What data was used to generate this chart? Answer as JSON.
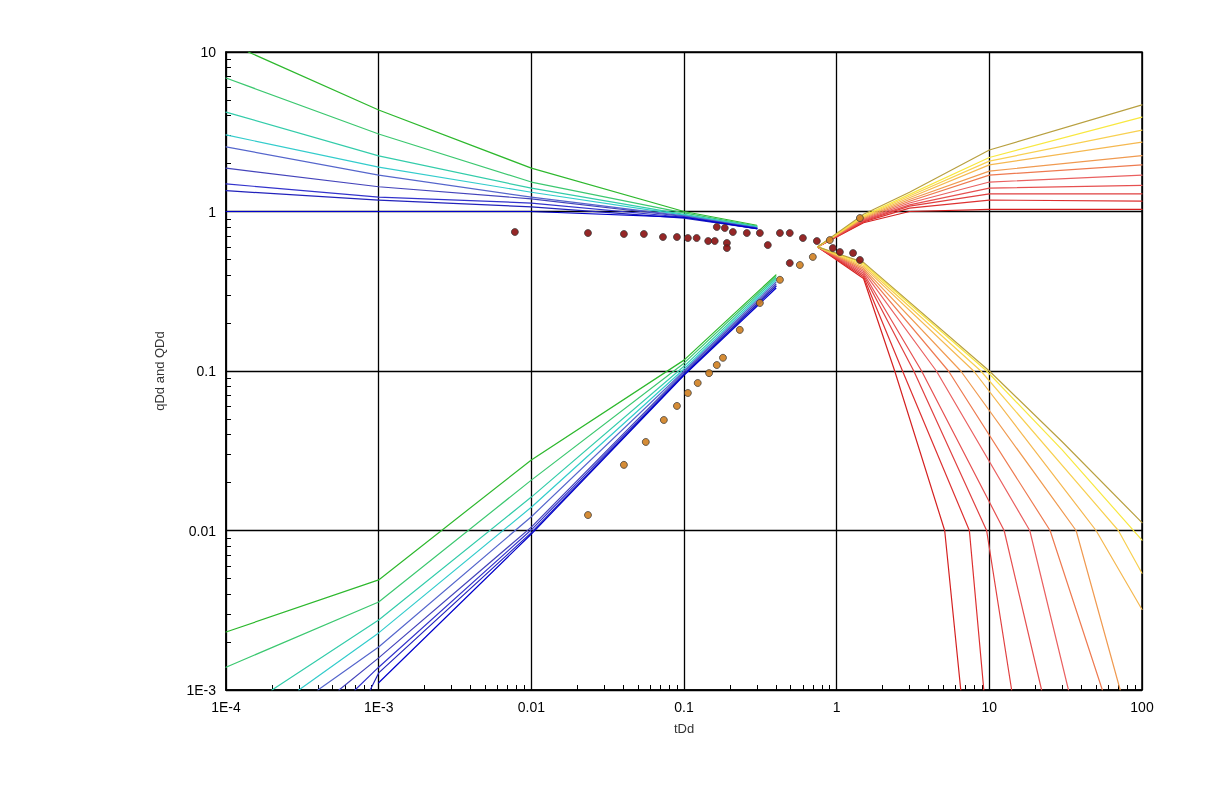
{
  "chart_data": {
    "type": "line",
    "xlabel": "tDd",
    "ylabel": "qDd and QDd",
    "log": "xy",
    "grid": true,
    "marker": "none",
    "xlim": [
      0.0001,
      100
    ],
    "xticks": [
      {
        "value": 0.0001,
        "label": "1E-4"
      },
      {
        "value": 0.001,
        "label": "1E-3"
      },
      0.01,
      0.1,
      1,
      10,
      100
    ],
    "ylim": [
      0.001,
      10
    ],
    "yticks": [
      {
        "value": 0.001,
        "label": "1E-3"
      },
      0.01,
      0.1,
      1,
      10
    ],
    "series": [
      {
        "color": "#2db82d",
        "x": [
          0.00014,
          0.001,
          0.01,
          0.1,
          0.3
        ],
        "values": [
          10,
          4.33,
          1.87,
          1.0,
          0.82
        ]
      },
      {
        "color": "#3cc870",
        "x": [
          0.0001,
          0.001,
          0.01,
          0.1,
          0.3
        ],
        "values": [
          6.87,
          3.06,
          1.53,
          0.98,
          0.81
        ]
      },
      {
        "color": "#33ccaa",
        "x": [
          0.0001,
          0.001,
          0.01,
          0.1,
          0.3
        ],
        "values": [
          4.2,
          2.23,
          1.4,
          0.96,
          0.8
        ]
      },
      {
        "color": "#33cccc",
        "x": [
          0.0001,
          0.001,
          0.01,
          0.1,
          0.3
        ],
        "values": [
          3.02,
          1.9,
          1.32,
          0.95,
          0.8
        ]
      },
      {
        "color": "#5566cc",
        "x": [
          0.0001,
          0.001,
          0.01,
          0.1,
          0.3
        ],
        "values": [
          2.54,
          1.69,
          1.23,
          0.94,
          0.79
        ]
      },
      {
        "color": "#4444bb",
        "x": [
          0.0001,
          0.001,
          0.01,
          0.1,
          0.3
        ],
        "values": [
          1.87,
          1.43,
          1.2,
          0.93,
          0.79
        ]
      },
      {
        "color": "#3333cc",
        "x": [
          0.0001,
          0.001,
          0.01,
          0.1,
          0.3
        ],
        "values": [
          1.49,
          1.23,
          1.13,
          0.92,
          0.78
        ]
      },
      {
        "color": "#2222bb",
        "x": [
          0.0001,
          0.001,
          0.01,
          0.1,
          0.3
        ],
        "values": [
          1.35,
          1.18,
          1.07,
          0.91,
          0.78
        ]
      },
      {
        "color": "#0000cc",
        "x": [
          0.0001,
          0.001,
          0.01,
          0.1,
          0.3
        ],
        "values": [
          1.0,
          1.0,
          1.0,
          0.92,
          0.78
        ]
      },
      {
        "color": "#2db82d",
        "x": [
          0.0001,
          0.001,
          0.01,
          0.1,
          0.4
        ],
        "values": [
          0.00231,
          0.0049,
          0.0277,
          0.117,
          0.4
        ]
      },
      {
        "color": "#3cc870",
        "x": [
          0.0001,
          0.001,
          0.01,
          0.1,
          0.4
        ],
        "values": [
          0.00139,
          0.00356,
          0.0207,
          0.112,
          0.39
        ]
      },
      {
        "color": "#33ccaa",
        "x": [
          0.0002,
          0.001,
          0.01,
          0.1,
          0.4
        ],
        "values": [
          0.001,
          0.00275,
          0.0162,
          0.107,
          0.38
        ]
      },
      {
        "color": "#33cccc",
        "x": [
          0.0003,
          0.001,
          0.01,
          0.1,
          0.4
        ],
        "values": [
          0.001,
          0.00228,
          0.014,
          0.103,
          0.37
        ]
      },
      {
        "color": "#5566cc",
        "x": [
          0.0004,
          0.001,
          0.01,
          0.1,
          0.4
        ],
        "values": [
          0.001,
          0.00186,
          0.0122,
          0.1,
          0.36
        ]
      },
      {
        "color": "#4444bb",
        "x": [
          0.00055,
          0.001,
          0.01,
          0.1,
          0.4
        ],
        "values": [
          0.001,
          0.00159,
          0.0105,
          0.098,
          0.35
        ]
      },
      {
        "color": "#3333cc",
        "x": [
          0.0007,
          0.001,
          0.01,
          0.1,
          0.4
        ],
        "values": [
          0.001,
          0.00139,
          0.0101,
          0.096,
          0.34
        ]
      },
      {
        "color": "#2222bb",
        "x": [
          0.00088,
          0.001,
          0.01,
          0.1,
          0.4
        ],
        "values": [
          0.001,
          0.00128,
          0.0097,
          0.095,
          0.34
        ]
      },
      {
        "color": "#0000cc",
        "x": [
          0.001,
          0.01,
          0.1,
          0.4
        ],
        "values": [
          0.00111,
          0.0095,
          0.094,
          0.33
        ]
      },
      {
        "color": "#d42020",
        "x": [
          0.75,
          1.5,
          2.4,
          5.1,
          6.5
        ],
        "values": [
          0.6,
          0.38,
          0.1,
          0.01,
          0.001
        ]
      },
      {
        "color": "#dd3030",
        "x": [
          0.75,
          1.5,
          2.7,
          7.4,
          9.2
        ],
        "values": [
          0.6,
          0.39,
          0.1,
          0.01,
          0.001
        ]
      },
      {
        "color": "#e04040",
        "x": [
          0.75,
          1.5,
          3.2,
          9.6,
          14
        ],
        "values": [
          0.6,
          0.4,
          0.1,
          0.01,
          0.001
        ]
      },
      {
        "color": "#e65050",
        "x": [
          0.75,
          1.5,
          3.6,
          12.5,
          22
        ],
        "values": [
          0.6,
          0.41,
          0.1,
          0.01,
          0.001
        ]
      },
      {
        "color": "#ea6060",
        "x": [
          0.75,
          1.5,
          4.5,
          18.4,
          33
        ],
        "values": [
          0.6,
          0.42,
          0.1,
          0.01,
          0.001
        ]
      },
      {
        "color": "#ee7a50",
        "x": [
          0.75,
          1.5,
          5.4,
          25,
          55
        ],
        "values": [
          0.6,
          0.43,
          0.1,
          0.01,
          0.001
        ]
      },
      {
        "color": "#f09a50",
        "x": [
          0.75,
          1.5,
          6.5,
          37,
          72
        ],
        "values": [
          0.6,
          0.44,
          0.1,
          0.01,
          0.001
        ]
      },
      {
        "color": "#f5b850",
        "x": [
          0.75,
          1.5,
          7.9,
          50,
          100
        ],
        "values": [
          0.6,
          0.45,
          0.1,
          0.01,
          0.0032
        ]
      },
      {
        "color": "#f8d050",
        "x": [
          0.75,
          1.5,
          8.8,
          70,
          100
        ],
        "values": [
          0.6,
          0.46,
          0.1,
          0.01,
          0.0054
        ]
      },
      {
        "color": "#f8e840",
        "x": [
          0.75,
          1.5,
          9.6,
          30,
          100
        ],
        "values": [
          0.6,
          0.47,
          0.1,
          0.032,
          0.0087
        ]
      },
      {
        "color": "#b8a040",
        "x": [
          0.75,
          1.5,
          10,
          30,
          100
        ],
        "values": [
          0.6,
          0.48,
          0.1,
          0.036,
          0.0112
        ]
      },
      {
        "color": "#d42020",
        "x": [
          0.75,
          1.5,
          3,
          10,
          100
        ],
        "values": [
          0.6,
          0.85,
          1.0,
          1.03,
          1.03
        ]
      },
      {
        "color": "#dd3030",
        "x": [
          0.75,
          1.5,
          3,
          10,
          100
        ],
        "values": [
          0.6,
          0.86,
          1.05,
          1.18,
          1.16
        ]
      },
      {
        "color": "#e04040",
        "x": [
          0.75,
          1.5,
          3,
          10,
          100
        ],
        "values": [
          0.6,
          0.87,
          1.08,
          1.29,
          1.29
        ]
      },
      {
        "color": "#e65050",
        "x": [
          0.75,
          1.5,
          3,
          10,
          100
        ],
        "values": [
          0.6,
          0.88,
          1.1,
          1.4,
          1.46
        ]
      },
      {
        "color": "#ea6060",
        "x": [
          0.75,
          1.5,
          3,
          10,
          100
        ],
        "values": [
          0.6,
          0.89,
          1.13,
          1.53,
          1.69
        ]
      },
      {
        "color": "#ee7a50",
        "x": [
          0.75,
          1.5,
          3,
          10,
          100
        ],
        "values": [
          0.6,
          0.9,
          1.16,
          1.69,
          1.96
        ]
      },
      {
        "color": "#f09a50",
        "x": [
          0.75,
          1.5,
          3,
          10,
          100
        ],
        "values": [
          0.6,
          0.91,
          1.19,
          1.79,
          2.24
        ]
      },
      {
        "color": "#f5b850",
        "x": [
          0.75,
          1.5,
          3,
          10,
          100
        ],
        "values": [
          0.6,
          0.92,
          1.22,
          1.96,
          2.72
        ]
      },
      {
        "color": "#f8d050",
        "x": [
          0.75,
          1.5,
          3,
          10,
          100
        ],
        "values": [
          0.6,
          0.93,
          1.25,
          2.07,
          3.24
        ]
      },
      {
        "color": "#f8e840",
        "x": [
          0.75,
          1.5,
          3,
          10,
          100
        ],
        "values": [
          0.6,
          0.94,
          1.28,
          2.18,
          3.91
        ]
      },
      {
        "color": "#b8a040",
        "x": [
          0.75,
          1.5,
          3,
          10,
          100
        ],
        "values": [
          0.6,
          0.96,
          1.32,
          2.43,
          4.66
        ]
      },
      {
        "type": "scatter",
        "marker": "circle",
        "color": "#8b1010",
        "x": [
          0.0078,
          0.0235,
          0.0404,
          0.0546,
          0.0728,
          0.0899,
          0.106,
          0.121,
          0.144,
          0.159,
          0.191,
          0.191,
          0.164,
          0.185,
          0.209,
          0.258,
          0.314,
          0.354,
          0.425,
          0.493,
          0.493,
          0.601,
          0.742,
          0.944,
          1.05,
          1.28,
          1.42
        ],
        "values": [
          0.744,
          0.733,
          0.723,
          0.723,
          0.692,
          0.692,
          0.682,
          0.682,
          0.653,
          0.653,
          0.635,
          0.59,
          0.8,
          0.788,
          0.744,
          0.733,
          0.733,
          0.616,
          0.733,
          0.733,
          0.475,
          0.682,
          0.653,
          0.59,
          0.557,
          0.549,
          0.497
        ]
      },
      {
        "type": "scatter",
        "marker": "circle",
        "color": "#d08020",
        "x": [
          0.0235,
          0.0404,
          0.0562,
          0.0738,
          0.0899,
          0.106,
          0.123,
          0.146,
          0.164,
          0.18,
          0.232,
          0.314,
          0.425,
          0.574,
          0.698,
          0.902,
          1.42
        ],
        "values": [
          0.0125,
          0.0258,
          0.0359,
          0.0493,
          0.0604,
          0.0728,
          0.0841,
          0.097,
          0.109,
          0.121,
          0.181,
          0.267,
          0.373,
          0.462,
          0.519,
          0.662,
          0.91
        ]
      }
    ]
  }
}
